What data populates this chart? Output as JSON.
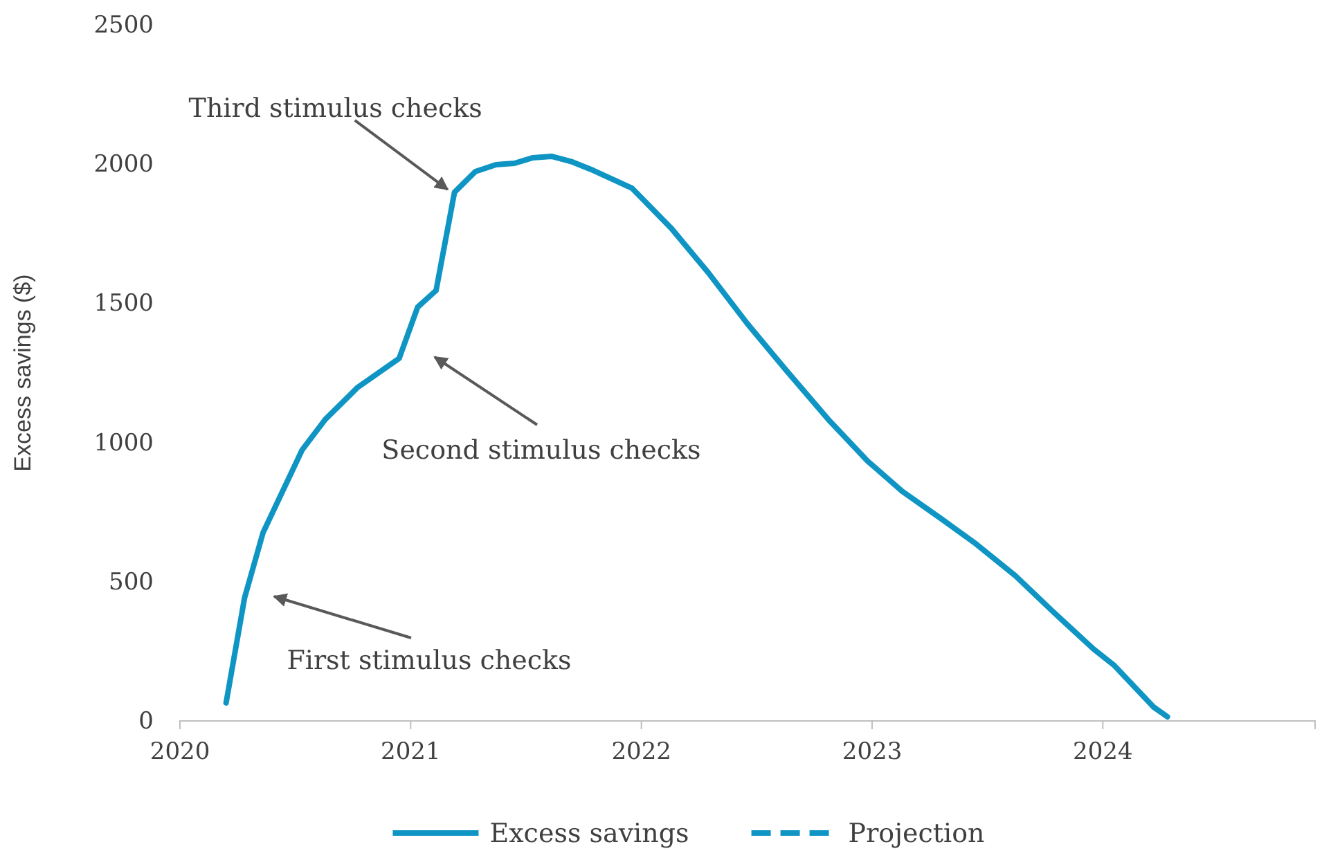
{
  "chart_data": {
    "type": "line",
    "ylabel": "Excess savings ($)",
    "xlim": [
      2020,
      2024.92
    ],
    "xticks": [
      2020,
      2021,
      2022,
      2023,
      2024
    ],
    "ylim": [
      0,
      2500
    ],
    "yticks": [
      0,
      500,
      1000,
      1500,
      2000,
      2500
    ],
    "grid": false,
    "legend": "bottom",
    "marker": "none",
    "series": [
      {
        "name": "Excess savings",
        "color": "#0f95c4",
        "line_style": "solid",
        "x": [
          2020.2,
          2020.28,
          2020.36,
          2020.53,
          2020.63,
          2020.77,
          2020.95,
          2021.03,
          2021.11,
          2021.19,
          2021.28,
          2021.37,
          2021.45,
          2021.53,
          2021.61,
          2021.7,
          2021.79,
          2021.96,
          2022.13,
          2022.29,
          2022.46,
          2022.63,
          2022.81,
          2022.98,
          2023.13,
          2023.3,
          2023.45,
          2023.62,
          2023.79,
          2023.96,
          2024.05,
          2024.22,
          2024.28
        ],
        "values": [
          65,
          442,
          676,
          974,
          1083,
          1198,
          1302,
          1486,
          1546,
          1899,
          1973,
          1998,
          2003,
          2023,
          2028,
          2008,
          1978,
          1913,
          1769,
          1610,
          1426,
          1257,
          1083,
          934,
          825,
          726,
          636,
          522,
          388,
          258,
          199,
          50,
          15
        ]
      },
      {
        "name": "Projection",
        "color": "#0f95c4",
        "line_style": "dashed"
      }
    ],
    "annotations": [
      "First stimulus checks",
      "Second stimulus checks",
      {
        "text": "Third stimulus checks",
        "x": 2021.19,
        "y": 1899
      }
    ]
  }
}
